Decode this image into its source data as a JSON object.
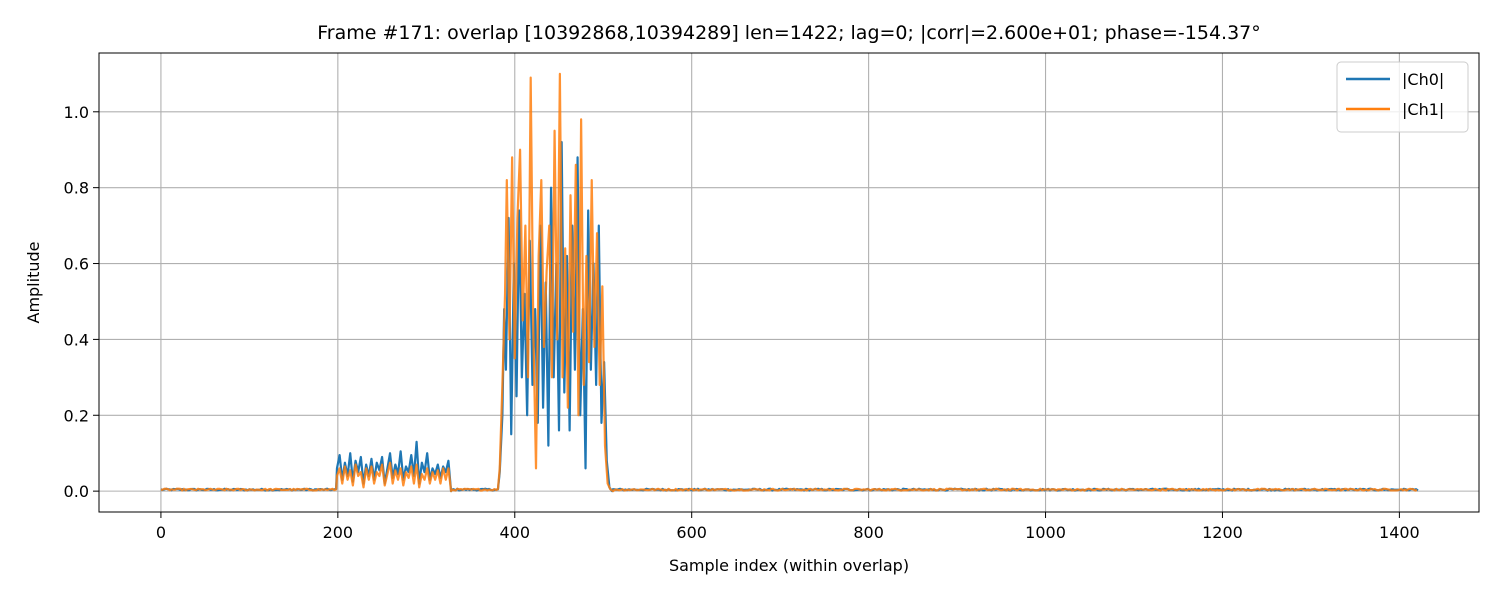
{
  "chart_data": {
    "type": "line",
    "title": "Frame #171: overlap [10392868,10394289]  len=1422; lag=0; |corr|=2.600e+01; phase=-154.37°",
    "xlabel": "Sample index (within overlap)",
    "ylabel": "Amplitude",
    "xlim": [
      -70,
      1490
    ],
    "ylim": [
      -0.055,
      1.155
    ],
    "xticks": [
      0,
      200,
      400,
      600,
      800,
      1000,
      1200,
      1400
    ],
    "yticks": [
      0.0,
      0.2,
      0.4,
      0.6,
      0.8,
      1.0
    ],
    "ytick_labels": [
      "0.0",
      "0.2",
      "0.4",
      "0.6",
      "0.8",
      "1.0"
    ],
    "grid": true,
    "legend": "top-right",
    "length": 1422,
    "series": [
      {
        "name": "|Ch0|",
        "color": "#1f77b4",
        "segments": [
          {
            "type": "noise",
            "from": 0,
            "to": 198,
            "level": 0.004
          },
          {
            "type": "points",
            "x": [
              199,
              202,
              205,
              208,
              211,
              214,
              217,
              220,
              223,
              226,
              229,
              232,
              235,
              238,
              241,
              244,
              247,
              250,
              253,
              256,
              259,
              262,
              265,
              268,
              271,
              274,
              277,
              280,
              283,
              286,
              289,
              292,
              295,
              298,
              301,
              304,
              307,
              310,
              313,
              316,
              319,
              322,
              325,
              328
            ],
            "y": [
              0.06,
              0.095,
              0.03,
              0.075,
              0.04,
              0.1,
              0.025,
              0.08,
              0.05,
              0.09,
              0.02,
              0.07,
              0.04,
              0.085,
              0.03,
              0.075,
              0.055,
              0.09,
              0.02,
              0.06,
              0.1,
              0.035,
              0.07,
              0.045,
              0.105,
              0.03,
              0.065,
              0.05,
              0.095,
              0.04,
              0.13,
              0.02,
              0.075,
              0.05,
              0.1,
              0.03,
              0.06,
              0.045,
              0.07,
              0.035,
              0.065,
              0.05,
              0.08,
              0.0
            ]
          },
          {
            "type": "noise",
            "from": 329,
            "to": 382,
            "level": 0.004
          },
          {
            "type": "points",
            "x": [
              383,
              386,
              388,
              390,
              393,
              396,
              399,
              402,
              405,
              408,
              411,
              414,
              417,
              420,
              423,
              426,
              429,
              432,
              435,
              438,
              441,
              444,
              447,
              450,
              453,
              456,
              459,
              462,
              465,
              468,
              471,
              474,
              477,
              480,
              483,
              486,
              489,
              492,
              495,
              498,
              501,
              504,
              507,
              510
            ],
            "y": [
              0.05,
              0.2,
              0.48,
              0.32,
              0.72,
              0.15,
              0.6,
              0.25,
              0.74,
              0.3,
              0.52,
              0.2,
              0.66,
              0.28,
              0.48,
              0.18,
              0.7,
              0.22,
              0.55,
              0.12,
              0.8,
              0.3,
              0.6,
              0.16,
              0.92,
              0.26,
              0.62,
              0.16,
              0.7,
              0.32,
              0.88,
              0.2,
              0.48,
              0.06,
              0.74,
              0.32,
              0.6,
              0.28,
              0.7,
              0.18,
              0.34,
              0.08,
              0.01,
              0.0
            ]
          },
          {
            "type": "noise",
            "from": 511,
            "to": 1421,
            "level": 0.004
          }
        ]
      },
      {
        "name": "|Ch1|",
        "color": "#ff7f0e",
        "segments": [
          {
            "type": "noise",
            "from": 0,
            "to": 198,
            "level": 0.004
          },
          {
            "type": "points",
            "x": [
              199,
              202,
              205,
              208,
              211,
              214,
              217,
              220,
              223,
              226,
              229,
              232,
              235,
              238,
              241,
              244,
              247,
              250,
              253,
              256,
              259,
              262,
              265,
              268,
              271,
              274,
              277,
              280,
              283,
              286,
              289,
              292,
              295,
              298,
              301,
              304,
              307,
              310,
              313,
              316,
              319,
              322,
              325,
              328
            ],
            "y": [
              0.04,
              0.06,
              0.02,
              0.065,
              0.03,
              0.055,
              0.015,
              0.07,
              0.04,
              0.05,
              0.01,
              0.06,
              0.03,
              0.065,
              0.02,
              0.05,
              0.04,
              0.07,
              0.015,
              0.045,
              0.075,
              0.02,
              0.055,
              0.03,
              0.06,
              0.015,
              0.05,
              0.035,
              0.065,
              0.02,
              0.07,
              0.01,
              0.045,
              0.03,
              0.06,
              0.02,
              0.05,
              0.03,
              0.055,
              0.02,
              0.06,
              0.03,
              0.06,
              0.0
            ]
          },
          {
            "type": "noise",
            "from": 329,
            "to": 382,
            "level": 0.004
          },
          {
            "type": "points",
            "x": [
              383,
              386,
              389,
              391,
              394,
              397,
              400,
              403,
              406,
              409,
              412,
              415,
              418,
              421,
              424,
              427,
              430,
              433,
              436,
              439,
              442,
              445,
              448,
              451,
              454,
              457,
              460,
              463,
              466,
              469,
              472,
              475,
              478,
              481,
              484,
              487,
              490,
              493,
              496,
              499,
              502,
              505,
              508,
              511
            ],
            "y": [
              0.06,
              0.28,
              0.52,
              0.82,
              0.4,
              0.88,
              0.35,
              0.72,
              0.9,
              0.45,
              0.7,
              0.3,
              1.09,
              0.42,
              0.06,
              0.62,
              0.82,
              0.38,
              0.58,
              0.7,
              0.3,
              0.95,
              0.4,
              1.1,
              0.3,
              0.64,
              0.22,
              0.78,
              0.42,
              0.86,
              0.2,
              0.98,
              0.28,
              0.62,
              0.34,
              0.82,
              0.38,
              0.68,
              0.28,
              0.54,
              0.12,
              0.02,
              0.005,
              0.0
            ]
          },
          {
            "type": "noise",
            "from": 512,
            "to": 1421,
            "level": 0.004
          }
        ]
      }
    ]
  }
}
